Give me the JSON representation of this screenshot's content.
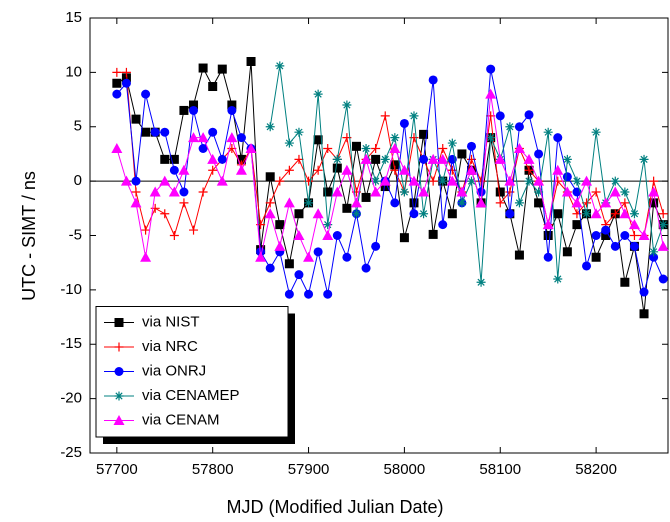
{
  "chart_data": {
    "type": "line",
    "x_label": "MJD (Modified Julian Date)",
    "y_label": "UTC - SIMT / ns",
    "xlim": [
      57672,
      58275
    ],
    "ylim": [
      -25,
      15
    ],
    "xticks": [
      57700,
      57800,
      57900,
      58000,
      58100,
      58200
    ],
    "yticks": [
      -25,
      -20,
      -15,
      -10,
      -5,
      0,
      5,
      10,
      15
    ],
    "reference_line": 0,
    "legend": "lower left",
    "x": [
      57700,
      57710,
      57720,
      57730,
      57740,
      57750,
      57760,
      57770,
      57780,
      57790,
      57800,
      57810,
      57820,
      57830,
      57840,
      57850,
      57860,
      57870,
      57880,
      57890,
      57900,
      57910,
      57920,
      57930,
      57940,
      57950,
      57960,
      57970,
      57980,
      57990,
      58000,
      58010,
      58020,
      58030,
      58040,
      58050,
      58060,
      58070,
      58080,
      58090,
      58100,
      58110,
      58120,
      58130,
      58140,
      58150,
      58160,
      58170,
      58180,
      58190,
      58200,
      58210,
      58220,
      58230,
      58240,
      58250,
      58260,
      58270
    ],
    "series": [
      {
        "name": "via NIST",
        "color": "#000000",
        "marker": "square",
        "values": [
          9,
          9.5,
          5.7,
          4.5,
          4.5,
          2,
          2,
          6.5,
          7,
          10.4,
          8.7,
          10.3,
          7,
          2,
          11,
          -6.3,
          0.4,
          -4,
          -7.6,
          -3,
          -2,
          3.8,
          -1,
          1.2,
          -2.5,
          3.2,
          -1.5,
          2,
          -0.5,
          1.5,
          -5.2,
          -2,
          4.3,
          -4.9,
          0,
          -3,
          2.5,
          1,
          -2,
          4,
          -1,
          -3,
          -6.8,
          1,
          -2,
          -5,
          -3,
          -6.5,
          -4,
          -3,
          -7,
          -5,
          -3,
          -9.3,
          -6,
          -12.2,
          -2,
          -4
        ]
      },
      {
        "name": "via NRC",
        "color": "#ff0000",
        "marker": "plus",
        "values": [
          10,
          10,
          -1,
          -4.5,
          -2.5,
          -3,
          -5,
          -2,
          -4.5,
          -1,
          1,
          2,
          3,
          1.5,
          3,
          -4,
          -2,
          0,
          1,
          2,
          0,
          1,
          3,
          2,
          4,
          -1,
          2,
          3,
          6,
          1,
          -1,
          4,
          2,
          0,
          3,
          1,
          -1,
          2,
          0,
          6,
          -2,
          -1,
          3,
          1,
          0,
          -4,
          0,
          -1,
          -3,
          -2,
          -1,
          -4,
          -3,
          -2,
          -5,
          -5,
          0,
          -3
        ]
      },
      {
        "name": "via ONRJ",
        "color": "#0000ff",
        "marker": "circle",
        "values": [
          8,
          9,
          0,
          8,
          4.5,
          4.5,
          1,
          -1,
          6.5,
          3,
          4.5,
          2,
          6.5,
          4,
          3,
          -6.5,
          -8,
          -6.5,
          -10.4,
          -8.6,
          -10.4,
          -6.5,
          -10.4,
          -5,
          -7,
          -3,
          -8,
          -6,
          0,
          -2,
          5.3,
          -3,
          2,
          9.3,
          -4,
          2,
          -2,
          3.2,
          -1,
          10.3,
          6,
          -3,
          5,
          6.1,
          2.5,
          -7,
          4,
          0.4,
          -1,
          -7.8,
          -5,
          -4.5,
          -6,
          -5,
          -6,
          -10.2,
          -7,
          -9
        ]
      },
      {
        "name": "via CENAMEP",
        "color": "#008080",
        "marker": "star",
        "values": [
          null,
          null,
          null,
          null,
          null,
          null,
          null,
          null,
          null,
          null,
          null,
          null,
          null,
          null,
          null,
          null,
          5,
          10.6,
          3.5,
          4.5,
          -2,
          8,
          -4,
          2,
          7,
          -3,
          3,
          0,
          2,
          4,
          -1,
          6,
          -3,
          2,
          0,
          3.5,
          -2,
          0,
          -9.3,
          4,
          2,
          5,
          -2,
          0,
          -1,
          4.5,
          -9,
          2,
          0,
          -3,
          4.5,
          -2,
          0,
          -1,
          -3,
          2,
          -6.5,
          -4
        ]
      },
      {
        "name": "via CENAM",
        "color": "#ff00ff",
        "marker": "triangle",
        "values": [
          3,
          0,
          -2,
          -7,
          -1,
          0,
          -1,
          1,
          4,
          4,
          2,
          0,
          4,
          1,
          3,
          -7,
          -3,
          -6,
          -2,
          -5,
          -7,
          -3,
          -5,
          -1,
          1,
          -2,
          2,
          -1,
          0,
          3,
          1,
          0,
          -1,
          2,
          2,
          0,
          -1,
          1,
          -2,
          8,
          2,
          0,
          3,
          2,
          0,
          -4,
          1,
          -1,
          -2,
          0,
          -3,
          -2,
          -1,
          -3,
          -4,
          -5,
          -1,
          -6
        ]
      }
    ]
  }
}
